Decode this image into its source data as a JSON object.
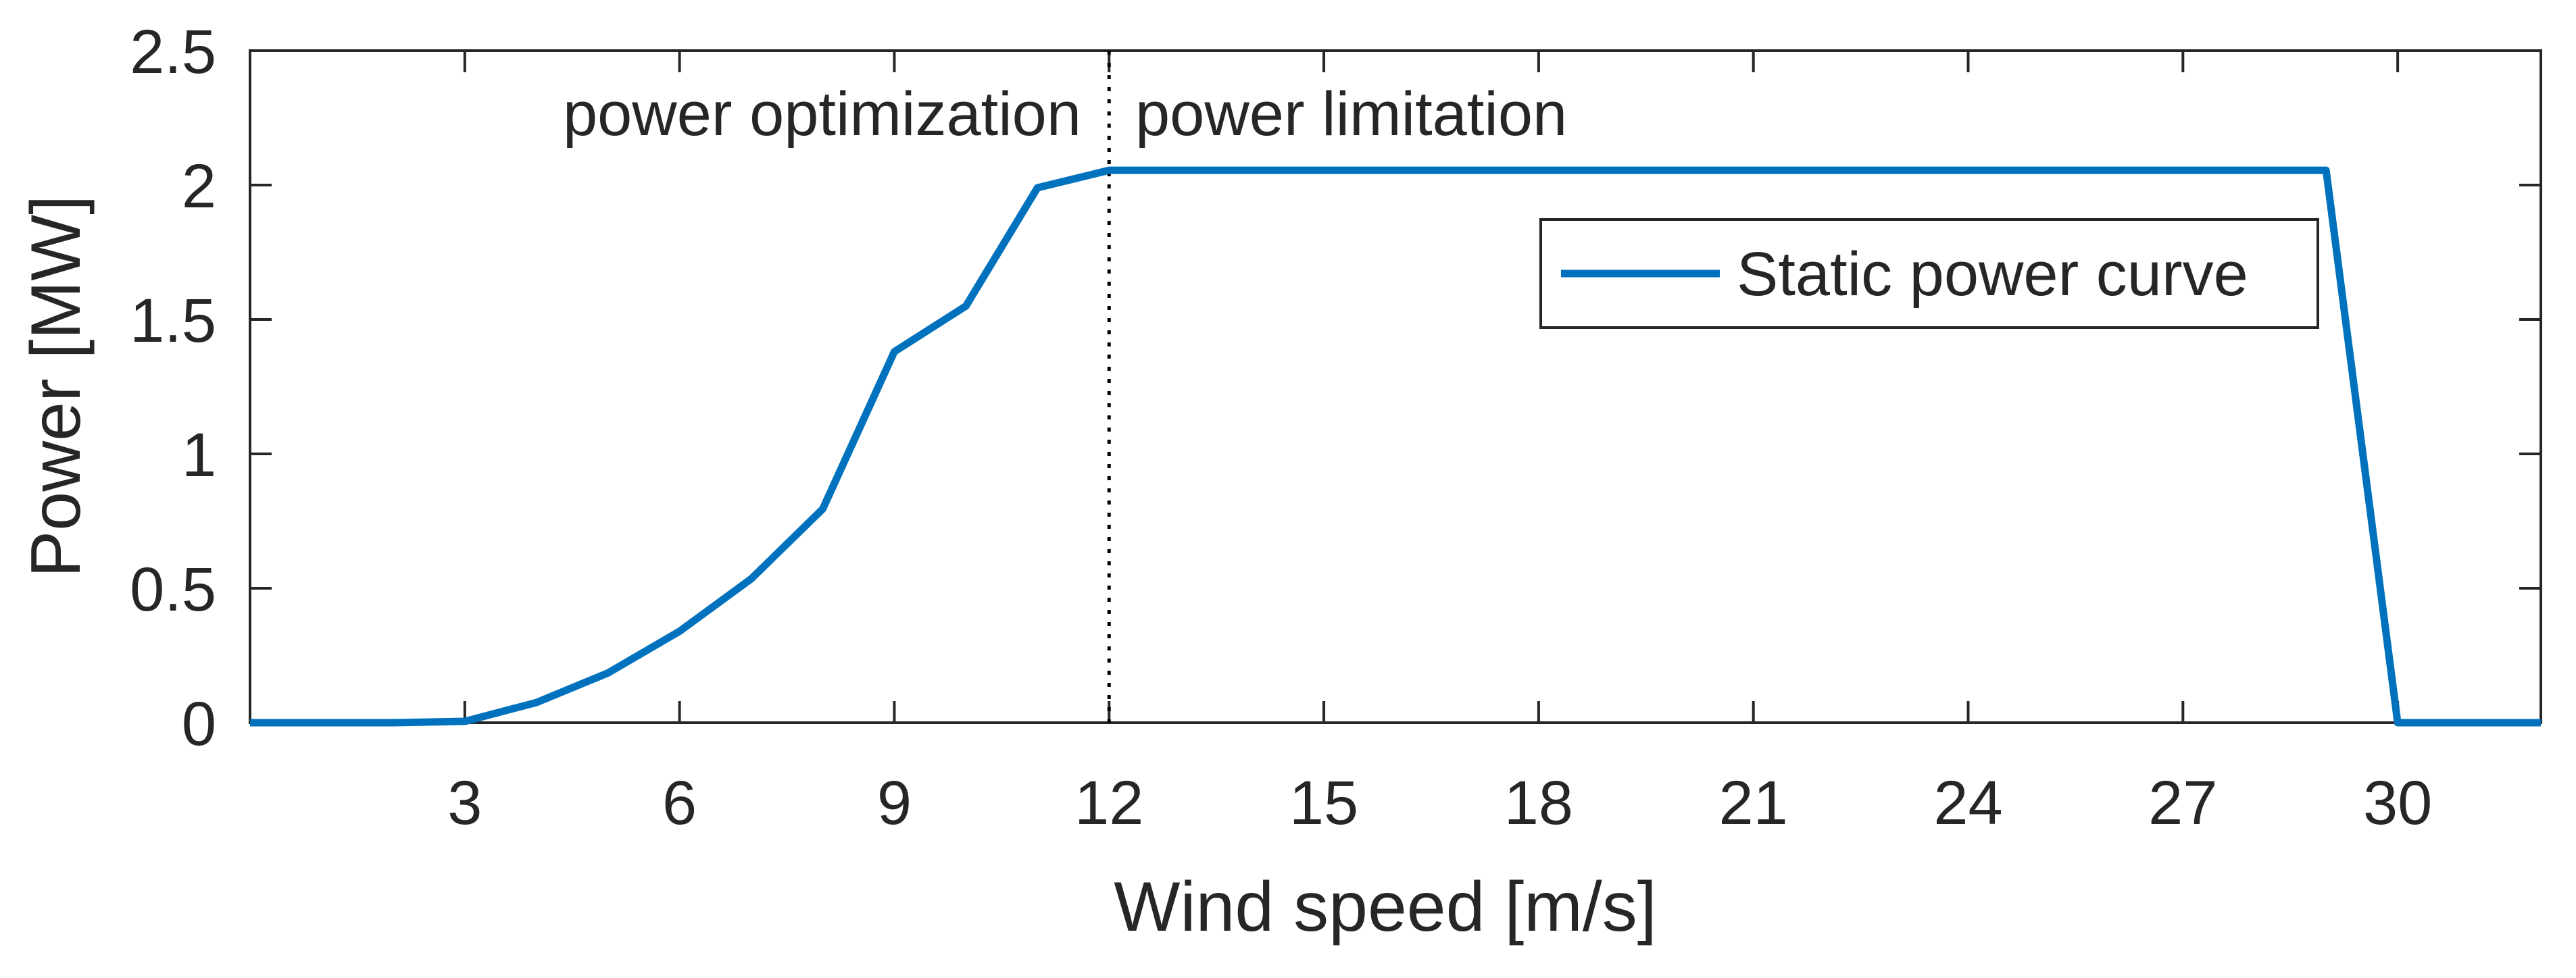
{
  "chart_data": {
    "type": "line",
    "title": "",
    "xlabel": "Wind speed [m/s]",
    "ylabel": "Power [MW]",
    "xlim": [
      0,
      32
    ],
    "ylim": [
      0,
      2.5
    ],
    "xticks": [
      3,
      6,
      9,
      12,
      15,
      18,
      21,
      24,
      27,
      30
    ],
    "yticks": [
      0,
      0.5,
      1,
      1.5,
      2,
      2.5
    ],
    "xtick_labels": [
      "3",
      "6",
      "9",
      "12",
      "15",
      "18",
      "21",
      "24",
      "27",
      "30"
    ],
    "ytick_labels": [
      "0",
      "0.5",
      "1",
      "1.5",
      "2",
      "2.5"
    ],
    "grid": false,
    "legend_position": "upper-right",
    "series": [
      {
        "name": "Static power curve",
        "color": "#0072BD",
        "x": [
          0,
          1,
          2,
          3,
          4,
          5,
          6,
          7,
          8,
          9,
          10,
          11,
          12,
          13,
          14,
          15,
          16,
          17,
          18,
          19,
          20,
          21,
          22,
          23,
          24,
          25,
          26,
          27,
          28,
          29,
          30,
          31,
          32
        ],
        "y": [
          0,
          0,
          0,
          0.005,
          0.075,
          0.185,
          0.34,
          0.535,
          0.795,
          1.38,
          1.55,
          1.99,
          2.055,
          2.055,
          2.055,
          2.055,
          2.055,
          2.055,
          2.055,
          2.055,
          2.055,
          2.055,
          2.055,
          2.055,
          2.055,
          2.055,
          2.055,
          2.055,
          2.055,
          2.055,
          0,
          0,
          0
        ]
      }
    ],
    "vline": {
      "x": 12,
      "style": "dotted",
      "color": "#000000"
    },
    "annotations": [
      {
        "text": "power optimization",
        "side": "left-of-vline"
      },
      {
        "text": "power limitation",
        "side": "right-of-vline"
      }
    ]
  }
}
